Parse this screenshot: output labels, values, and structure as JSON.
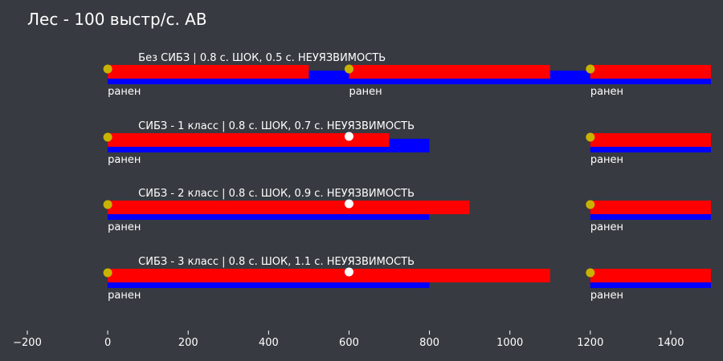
{
  "chart_data": {
    "type": "bar",
    "orientation": "horizontal-timeline",
    "title": "Лес - 100 выстр/с. АВ",
    "xlim": [
      -200,
      1500
    ],
    "x_ticks": [
      {
        "value": -200,
        "label": "−200"
      },
      {
        "value": 0,
        "label": "0"
      },
      {
        "value": 200,
        "label": "200"
      },
      {
        "value": 400,
        "label": "400"
      },
      {
        "value": 600,
        "label": "600"
      },
      {
        "value": 800,
        "label": "800"
      },
      {
        "value": 1000,
        "label": "1000"
      },
      {
        "value": 1200,
        "label": "1200"
      },
      {
        "value": 1400,
        "label": "1400"
      }
    ],
    "grid": false,
    "colors": {
      "shock": "#ff0000",
      "invulnerability": "#0000ff",
      "hit_marker": "#c8b400",
      "shot_marker": "#ffffff",
      "text": "#ffffff",
      "background": "#373a40"
    },
    "rows": [
      {
        "label": "Без СИБЗ | 0.8 с. ШОК, 0.5 с. НЕУЯЗВИМОСТЬ",
        "shock": [
          [
            0,
            500
          ],
          [
            600,
            1100
          ],
          [
            1200,
            1500
          ]
        ],
        "invulnerability": [
          [
            0,
            1500
          ]
        ],
        "hits": [
          0,
          600,
          1200
        ],
        "hit_label": "ранен",
        "shots": []
      },
      {
        "label": "СИБЗ - 1 класс | 0.8 с. ШОК, 0.7 с. НЕУЯЗВИМОСТЬ",
        "shock": [
          [
            0,
            700
          ],
          [
            1200,
            1500
          ]
        ],
        "invulnerability": [
          [
            0,
            800
          ],
          [
            1200,
            1500
          ]
        ],
        "hits": [
          0,
          1200
        ],
        "hit_label": "ранен",
        "shots": [
          600
        ]
      },
      {
        "label": "СИБЗ - 2 класс | 0.8 с. ШОК, 0.9 с. НЕУЯЗВИМОСТЬ",
        "shock": [
          [
            0,
            900
          ],
          [
            1200,
            1500
          ]
        ],
        "invulnerability": [
          [
            0,
            800
          ],
          [
            1200,
            1500
          ]
        ],
        "hits": [
          0,
          1200
        ],
        "hit_label": "ранен",
        "shots": [
          600
        ]
      },
      {
        "label": "СИБЗ - 3 класс | 0.8 с. ШОК, 1.1 с. НЕУЯЗВИМОСТЬ",
        "shock": [
          [
            0,
            1100
          ],
          [
            1200,
            1500
          ]
        ],
        "invulnerability": [
          [
            0,
            800
          ],
          [
            1200,
            1500
          ]
        ],
        "hits": [
          0,
          1200
        ],
        "hit_label": "ранен",
        "shots": [
          600
        ]
      }
    ]
  }
}
